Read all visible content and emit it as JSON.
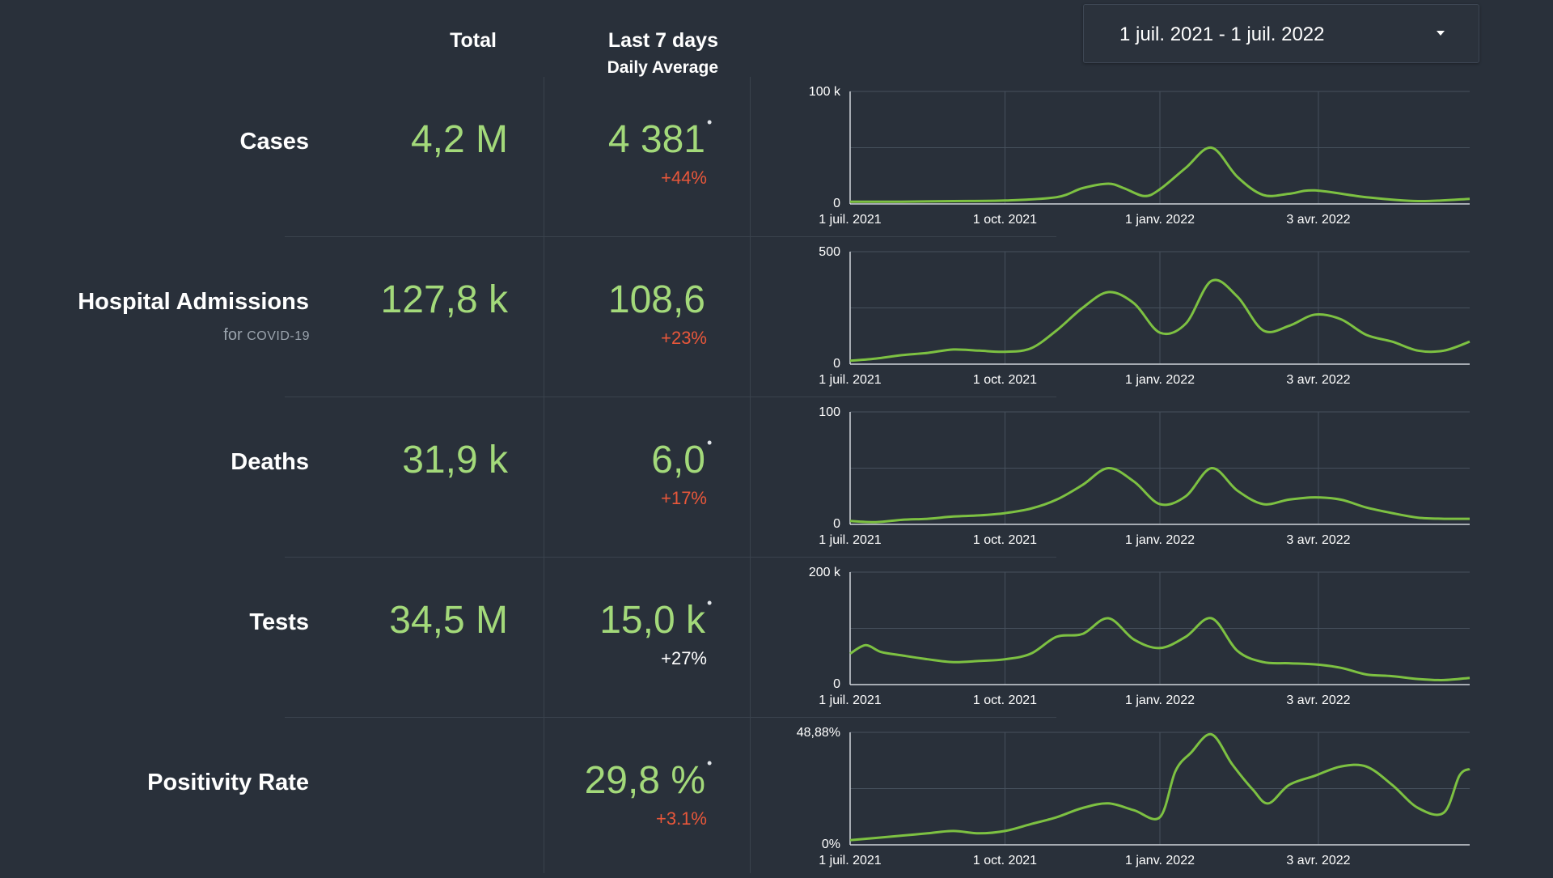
{
  "header": {
    "total_label": "Total",
    "last7_label": "Last 7 days",
    "daily_avg_label": "Daily Average"
  },
  "date_range": {
    "label": "1 juil. 2021 - 1 juil. 2022",
    "caret_icon": "caret-down-icon"
  },
  "colors": {
    "background": "#29303a",
    "value_green": "#a3d97a",
    "line_green": "#7dc142",
    "increase_red": "#e8573a",
    "neutral_text": "#ffffff"
  },
  "metrics": [
    {
      "label": "Cases",
      "sublabel": "",
      "sublabel_small": "",
      "total": "4,2 M",
      "avg": "4 381",
      "note": "•",
      "change": "+44%",
      "change_color": "#e8573a"
    },
    {
      "label": "Hospital Admissions",
      "sublabel": "for ",
      "sublabel_small": "COVID-19",
      "total": "127,8 k",
      "avg": "108,6",
      "note": "",
      "change": "+23%",
      "change_color": "#e8573a"
    },
    {
      "label": "Deaths",
      "sublabel": "",
      "sublabel_small": "",
      "total": "31,9 k",
      "avg": "6,0",
      "note": "•",
      "change": "+17%",
      "change_color": "#e8573a"
    },
    {
      "label": "Tests",
      "sublabel": "",
      "sublabel_small": "",
      "total": "34,5 M",
      "avg": "15,0 k",
      "note": "•",
      "change": "+27%",
      "change_color": "#ffffff"
    },
    {
      "label": "Positivity Rate",
      "sublabel": "",
      "sublabel_small": "",
      "total": "",
      "avg": "29,8 %",
      "note": "•",
      "change": "+3.1%",
      "change_color": "#e8573a"
    }
  ],
  "chart_data": [
    {
      "type": "line",
      "series_for": "Cases",
      "x_ticks": [
        "1 juil. 2021",
        "1 oct. 2021",
        "1 janv. 2022",
        "3 avr. 2022"
      ],
      "y_ticks": [
        "100 k",
        "0"
      ],
      "ylim": [
        0,
        100000
      ],
      "grid": true,
      "x_months": [
        0,
        1,
        2,
        3,
        4,
        4.5,
        5,
        5.3,
        5.7,
        6,
        6.5,
        7,
        7.5,
        8,
        8.5,
        9,
        10,
        11,
        12
      ],
      "y_values": [
        2000,
        2000,
        2500,
        3000,
        6000,
        14000,
        18000,
        14000,
        7000,
        13000,
        32000,
        50000,
        24000,
        8000,
        9000,
        12000,
        6000,
        2500,
        4500
      ]
    },
    {
      "type": "line",
      "series_for": "Hospital Admissions",
      "x_ticks": [
        "1 juil. 2021",
        "1 oct. 2021",
        "1 janv. 2022",
        "3 avr. 2022"
      ],
      "y_ticks": [
        "500",
        "0"
      ],
      "ylim": [
        0,
        500
      ],
      "grid": true,
      "x_months": [
        0,
        0.5,
        1,
        1.5,
        2,
        2.5,
        3,
        3.5,
        4,
        4.5,
        5,
        5.5,
        6,
        6.5,
        7,
        7.5,
        8,
        8.5,
        9,
        9.5,
        10,
        10.5,
        11,
        11.5,
        12
      ],
      "y_values": [
        15,
        25,
        40,
        50,
        65,
        60,
        55,
        70,
        150,
        250,
        320,
        270,
        140,
        180,
        370,
        300,
        150,
        170,
        220,
        200,
        130,
        100,
        60,
        60,
        100
      ]
    },
    {
      "type": "line",
      "series_for": "Deaths",
      "x_ticks": [
        "1 juil. 2021",
        "1 oct. 2021",
        "1 janv. 2022",
        "3 avr. 2022"
      ],
      "y_ticks": [
        "100",
        "0"
      ],
      "ylim": [
        0,
        100
      ],
      "grid": true,
      "x_months": [
        0,
        0.5,
        1,
        1.5,
        2,
        2.5,
        3,
        3.5,
        4,
        4.5,
        5,
        5.5,
        6,
        6.5,
        7,
        7.5,
        8,
        8.5,
        9,
        9.5,
        10,
        10.5,
        11,
        11.5,
        12
      ],
      "y_values": [
        3,
        2,
        4,
        5,
        7,
        8,
        10,
        14,
        22,
        35,
        50,
        38,
        18,
        25,
        50,
        30,
        18,
        22,
        24,
        22,
        15,
        10,
        6,
        5,
        5
      ]
    },
    {
      "type": "line",
      "series_for": "Tests",
      "x_ticks": [
        "1 juil. 2021",
        "1 oct. 2021",
        "1 janv. 2022",
        "3 avr. 2022"
      ],
      "y_ticks": [
        "200 k",
        "0"
      ],
      "ylim": [
        0,
        200000
      ],
      "grid": true,
      "x_months": [
        0,
        0.3,
        0.6,
        1,
        1.5,
        2,
        2.5,
        3,
        3.5,
        4,
        4.5,
        5,
        5.5,
        6,
        6.5,
        7,
        7.5,
        8,
        8.5,
        9,
        9.5,
        10,
        10.5,
        11,
        11.5,
        12
      ],
      "y_values": [
        55000,
        70000,
        58000,
        52000,
        45000,
        40000,
        42000,
        45000,
        55000,
        85000,
        90000,
        118000,
        80000,
        65000,
        85000,
        118000,
        60000,
        40000,
        38000,
        36000,
        30000,
        18000,
        15000,
        10000,
        8000,
        12000
      ]
    },
    {
      "type": "line",
      "series_for": "Positivity Rate",
      "x_ticks": [
        "1 juil. 2021",
        "1 oct. 2021",
        "1 janv. 2022",
        "3 avr. 2022"
      ],
      "y_ticks": [
        "48,88%",
        "0%"
      ],
      "ylim": [
        0,
        48.88
      ],
      "grid": true,
      "x_months": [
        0,
        0.5,
        1,
        1.5,
        2,
        2.5,
        3,
        3.5,
        4,
        4.5,
        5,
        5.5,
        6,
        6.3,
        6.6,
        7,
        7.4,
        7.8,
        8.1,
        8.5,
        9,
        9.5,
        10,
        10.5,
        11,
        11.5,
        11.8,
        12
      ],
      "y_values": [
        2,
        3,
        4,
        5,
        6,
        5,
        6,
        9,
        12,
        16,
        18,
        15,
        12,
        32,
        40,
        48,
        35,
        24,
        18,
        26,
        30,
        34,
        34,
        26,
        16,
        14,
        30,
        33
      ]
    }
  ]
}
